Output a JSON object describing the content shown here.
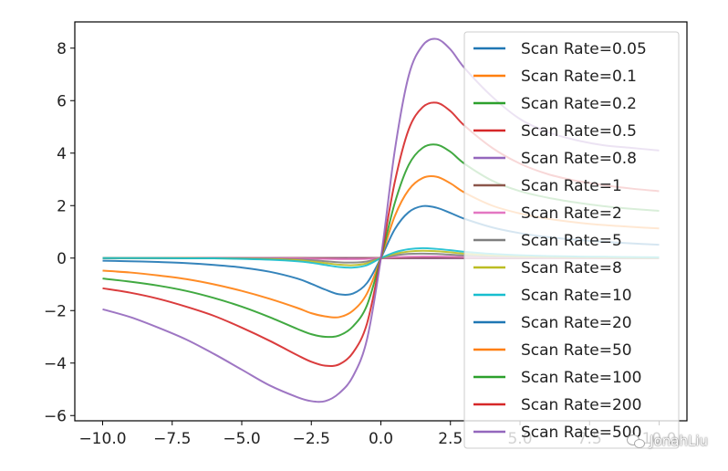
{
  "chart_data": {
    "type": "line",
    "title": "",
    "xlabel": "",
    "ylabel": "",
    "xlim": [
      -11,
      11
    ],
    "ylim": [
      -6.2,
      9
    ],
    "xticks": [
      "−10.0",
      "−7.5",
      "−5.0",
      "−2.5",
      "0.0",
      "2.5",
      "5.0",
      "7.5",
      "10.0"
    ],
    "xtick_values": [
      -10,
      -7.5,
      -5,
      -2.5,
      0,
      2.5,
      5,
      7.5,
      10
    ],
    "yticks": [
      "−6",
      "−4",
      "−2",
      "0",
      "2",
      "4",
      "6",
      "8"
    ],
    "ytick_values": [
      -6,
      -4,
      -2,
      0,
      2,
      4,
      6,
      8
    ],
    "grid": false,
    "legend_position": "top-right",
    "x": [
      -10,
      -9,
      -8,
      -7,
      -6,
      -5,
      -4,
      -3,
      -2.5,
      -2,
      -1.5,
      -1,
      -0.5,
      0,
      0.5,
      1,
      1.5,
      2,
      2.5,
      3,
      4,
      5,
      6,
      7,
      8,
      9,
      10
    ],
    "series": [
      {
        "name": "Scan Rate=0.05",
        "color": "#1f77b4",
        "values": [
          0.0,
          0.0,
          0.0,
          0.0,
          0.0,
          0.0,
          0.0,
          0.0,
          0.0,
          0.0,
          0.0,
          0.0,
          0.0,
          0.0,
          0.0,
          0.0,
          0.0,
          0.0,
          0.0,
          0.0,
          0.0,
          0.0,
          0.0,
          0.0,
          0.0,
          0.0,
          0.0
        ]
      },
      {
        "name": "Scan Rate=0.1",
        "color": "#ff7f0e",
        "values": [
          0.0,
          0.0,
          0.0,
          0.0,
          0.0,
          0.0,
          0.0,
          0.0,
          0.0,
          0.0,
          0.0,
          0.0,
          0.0,
          0.0,
          0.0,
          0.0,
          0.0,
          0.0,
          0.0,
          0.0,
          0.0,
          0.0,
          0.0,
          0.0,
          0.0,
          0.0,
          0.0
        ]
      },
      {
        "name": "Scan Rate=0.2",
        "color": "#2ca02c",
        "values": [
          0.0,
          0.0,
          0.0,
          0.0,
          0.0,
          0.0,
          0.0,
          0.0,
          0.0,
          0.0,
          0.0,
          0.0,
          0.0,
          0.0,
          0.0,
          0.0,
          0.0,
          0.0,
          0.0,
          0.0,
          0.0,
          0.0,
          0.0,
          0.0,
          0.0,
          0.0,
          0.0
        ]
      },
      {
        "name": "Scan Rate=0.5",
        "color": "#d62728",
        "values": [
          0.0,
          0.0,
          0.0,
          0.0,
          0.0,
          0.0,
          0.0,
          0.0,
          0.0,
          0.0,
          0.0,
          0.0,
          0.0,
          0.0,
          0.0,
          0.0,
          0.0,
          0.0,
          0.0,
          0.0,
          0.0,
          0.0,
          0.0,
          0.0,
          0.0,
          0.0,
          0.0
        ]
      },
      {
        "name": "Scan Rate=0.8",
        "color": "#9467bd",
        "values": [
          0.0,
          0.0,
          0.0,
          0.0,
          0.0,
          0.0,
          0.0,
          0.0,
          0.0,
          0.0,
          0.0,
          0.0,
          0.0,
          0.0,
          0.0,
          0.0,
          0.0,
          0.0,
          0.0,
          0.0,
          0.0,
          0.0,
          0.0,
          0.0,
          0.0,
          0.0,
          0.0
        ]
      },
      {
        "name": "Scan Rate=1",
        "color": "#8c564b",
        "values": [
          0.0,
          0.0,
          0.0,
          0.0,
          0.0,
          0.0,
          0.0,
          0.0,
          -0.01,
          -0.01,
          -0.02,
          -0.02,
          -0.01,
          0.0,
          0.01,
          0.02,
          0.03,
          0.03,
          0.03,
          0.02,
          0.01,
          0.01,
          0.01,
          0.01,
          0.0,
          0.0,
          0.0
        ]
      },
      {
        "name": "Scan Rate=2",
        "color": "#e377c2",
        "values": [
          0.0,
          0.0,
          0.0,
          0.0,
          0.0,
          0.0,
          0.0,
          -0.01,
          -0.02,
          -0.03,
          -0.04,
          -0.04,
          -0.03,
          0.0,
          0.03,
          0.05,
          0.06,
          0.06,
          0.05,
          0.04,
          0.03,
          0.02,
          0.01,
          0.01,
          0.01,
          0.01,
          0.01
        ]
      },
      {
        "name": "Scan Rate=5",
        "color": "#7f7f7f",
        "values": [
          0.0,
          0.0,
          0.0,
          0.0,
          0.0,
          -0.01,
          -0.02,
          -0.05,
          -0.08,
          -0.12,
          -0.16,
          -0.17,
          -0.13,
          0.0,
          0.1,
          0.16,
          0.17,
          0.16,
          0.13,
          0.1,
          0.06,
          0.04,
          0.03,
          0.02,
          0.02,
          0.01,
          0.01
        ]
      },
      {
        "name": "Scan Rate=8",
        "color": "#bcbd22",
        "values": [
          0.0,
          0.0,
          0.0,
          0.0,
          -0.01,
          -0.02,
          -0.04,
          -0.08,
          -0.13,
          -0.19,
          -0.25,
          -0.27,
          -0.2,
          0.0,
          0.16,
          0.25,
          0.28,
          0.26,
          0.22,
          0.17,
          0.11,
          0.07,
          0.05,
          0.04,
          0.03,
          0.02,
          0.02
        ]
      },
      {
        "name": "Scan Rate=10",
        "color": "#17becf",
        "values": [
          0.0,
          0.0,
          0.0,
          -0.01,
          -0.01,
          -0.03,
          -0.06,
          -0.12,
          -0.18,
          -0.26,
          -0.34,
          -0.36,
          -0.27,
          0.0,
          0.22,
          0.34,
          0.38,
          0.35,
          0.3,
          0.24,
          0.16,
          0.11,
          0.08,
          0.06,
          0.05,
          0.04,
          0.03
        ]
      },
      {
        "name": "Scan Rate=20",
        "color": "#1f77b4",
        "values": [
          -0.1,
          -0.12,
          -0.15,
          -0.19,
          -0.26,
          -0.36,
          -0.52,
          -0.78,
          -0.98,
          -1.2,
          -1.38,
          -1.35,
          -0.95,
          0.0,
          1.1,
          1.75,
          1.98,
          1.92,
          1.72,
          1.5,
          1.17,
          0.95,
          0.8,
          0.7,
          0.62,
          0.56,
          0.51
        ]
      },
      {
        "name": "Scan Rate=50",
        "color": "#ff7f0e",
        "values": [
          -0.48,
          -0.55,
          -0.66,
          -0.8,
          -1.0,
          -1.25,
          -1.55,
          -1.9,
          -2.1,
          -2.22,
          -2.25,
          -2.0,
          -1.35,
          0.0,
          1.6,
          2.6,
          3.05,
          3.1,
          2.85,
          2.5,
          2.0,
          1.7,
          1.5,
          1.36,
          1.26,
          1.19,
          1.13
        ]
      },
      {
        "name": "Scan Rate=100",
        "color": "#2ca02c",
        "values": [
          -0.78,
          -0.9,
          -1.05,
          -1.25,
          -1.52,
          -1.85,
          -2.25,
          -2.7,
          -2.9,
          -3.0,
          -2.95,
          -2.6,
          -1.8,
          0.0,
          2.1,
          3.55,
          4.2,
          4.32,
          4.05,
          3.6,
          2.95,
          2.55,
          2.3,
          2.12,
          1.98,
          1.88,
          1.8
        ]
      },
      {
        "name": "Scan Rate=200",
        "color": "#d62728",
        "values": [
          -1.15,
          -1.32,
          -1.55,
          -1.85,
          -2.2,
          -2.65,
          -3.15,
          -3.7,
          -3.95,
          -4.1,
          -4.05,
          -3.6,
          -2.5,
          0.0,
          2.9,
          4.9,
          5.75,
          5.92,
          5.6,
          5.05,
          4.2,
          3.6,
          3.2,
          2.95,
          2.78,
          2.65,
          2.55
        ]
      },
      {
        "name": "Scan Rate=500",
        "color": "#9467bd",
        "values": [
          -1.95,
          -2.25,
          -2.65,
          -3.1,
          -3.65,
          -4.25,
          -4.85,
          -5.3,
          -5.45,
          -5.45,
          -5.15,
          -4.5,
          -3.1,
          0.0,
          4.1,
          6.95,
          8.1,
          8.35,
          7.95,
          7.25,
          6.15,
          5.3,
          4.8,
          4.5,
          4.3,
          4.2,
          4.1
        ]
      }
    ]
  },
  "watermark": {
    "text": "JonahLiu",
    "icon": "wechat-icon"
  }
}
